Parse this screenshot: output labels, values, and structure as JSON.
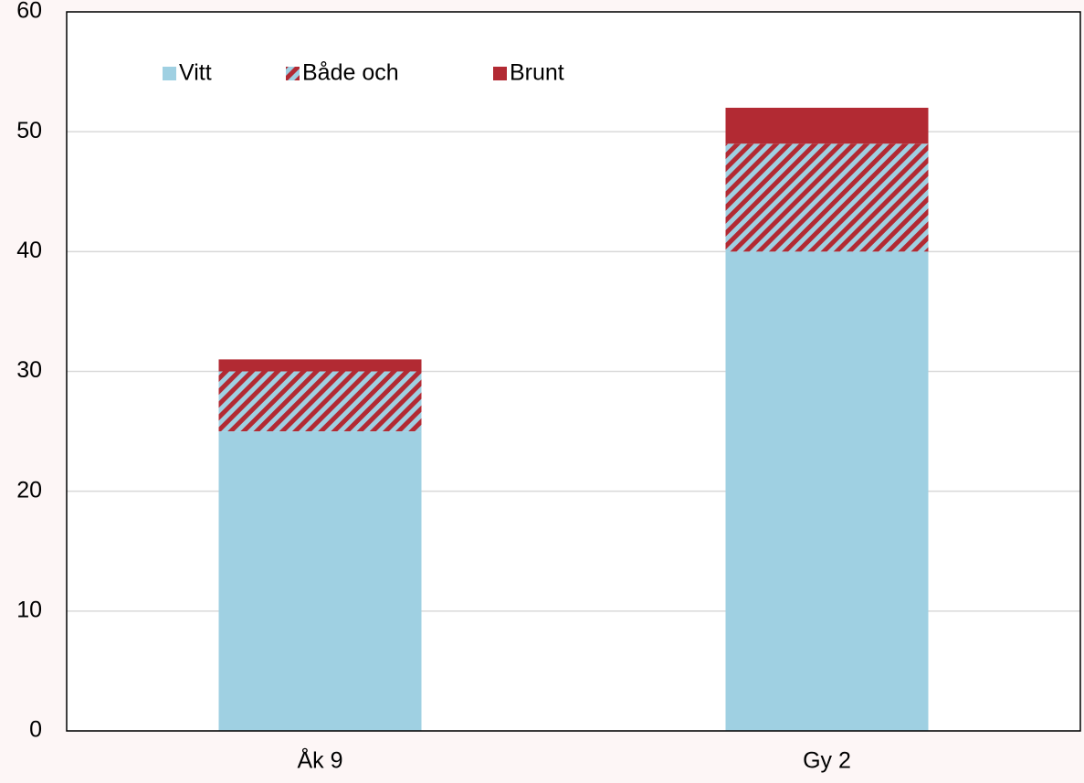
{
  "chart_data": {
    "type": "stacked_bar",
    "categories": [
      "Åk 9",
      "Gy 2"
    ],
    "series": [
      {
        "name": "Vitt",
        "color": "#9fd0e2",
        "values": [
          25,
          40
        ]
      },
      {
        "name": "Både och",
        "color": "#b22a33",
        "hatch": true,
        "hatch_background": "#9fd0e2",
        "values": [
          5,
          9
        ]
      },
      {
        "name": "Brunt",
        "color": "#b22a33",
        "values": [
          1,
          3
        ]
      }
    ],
    "ylim": [
      0,
      60
    ],
    "yticks": [
      0,
      10,
      20,
      30,
      40,
      50,
      60
    ],
    "grid": true,
    "legend": "top-left"
  }
}
